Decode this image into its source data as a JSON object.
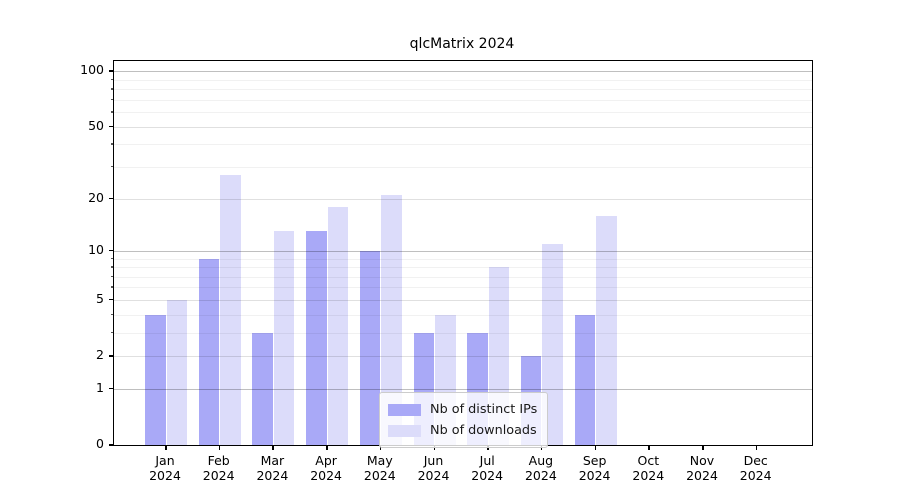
{
  "chart_data": {
    "type": "bar",
    "title": "qlcMatrix 2024",
    "scale": "log1p",
    "categories": [
      "Jan",
      "Feb",
      "Mar",
      "Apr",
      "May",
      "Jun",
      "Jul",
      "Aug",
      "Sep",
      "Oct",
      "Nov",
      "Dec"
    ],
    "x_tick_year": "2024",
    "series": [
      {
        "name": "Nb of distinct IPs",
        "color": "#a9a9f7",
        "values": [
          4,
          9,
          3,
          13,
          10,
          3,
          3,
          2,
          4,
          0,
          0,
          0
        ]
      },
      {
        "name": "Nb of downloads",
        "color": "#dcdcfa",
        "values": [
          5,
          27,
          13,
          18,
          21,
          4,
          8,
          11,
          16,
          0,
          0,
          0
        ]
      }
    ],
    "y_ticks": [
      0,
      1,
      2,
      5,
      10,
      20,
      50,
      100
    ],
    "ylim": [
      0,
      114
    ],
    "xlabel": "",
    "ylabel": "",
    "grid": "horizontal, minor and major, drawn over bars",
    "legend_position": "lower center of plot"
  },
  "colors": {
    "distinct_ips_bar": "#a9a9f7",
    "downloads_bar": "#dcdcfa",
    "axis_spine": "#000000",
    "legend_border": "#cccccc"
  }
}
